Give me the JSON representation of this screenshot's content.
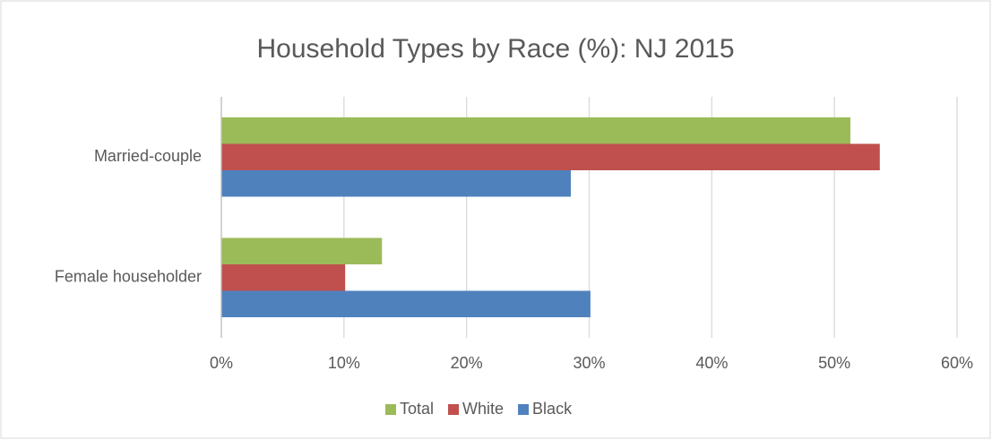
{
  "chart_data": {
    "type": "bar",
    "orientation": "horizontal",
    "title": "Household Types by Race (%): NJ 2015",
    "categories": [
      "Married-couple",
      "Female householder"
    ],
    "series": [
      {
        "name": "Total",
        "color": "#9bbb59",
        "values": [
          51.3,
          13.1
        ]
      },
      {
        "name": "White",
        "color": "#c0504d",
        "values": [
          53.7,
          10.1
        ]
      },
      {
        "name": "Black",
        "color": "#4f81bd",
        "values": [
          28.5,
          30.1
        ]
      }
    ],
    "xlim": [
      0,
      60
    ],
    "xticks": [
      {
        "value": 0,
        "label": "0%"
      },
      {
        "value": 10,
        "label": "10%"
      },
      {
        "value": 20,
        "label": "20%"
      },
      {
        "value": 30,
        "label": "30%"
      },
      {
        "value": 40,
        "label": "40%"
      },
      {
        "value": 50,
        "label": "50%"
      },
      {
        "value": 60,
        "label": "60%"
      }
    ],
    "grid": true,
    "legend": "bottom"
  }
}
